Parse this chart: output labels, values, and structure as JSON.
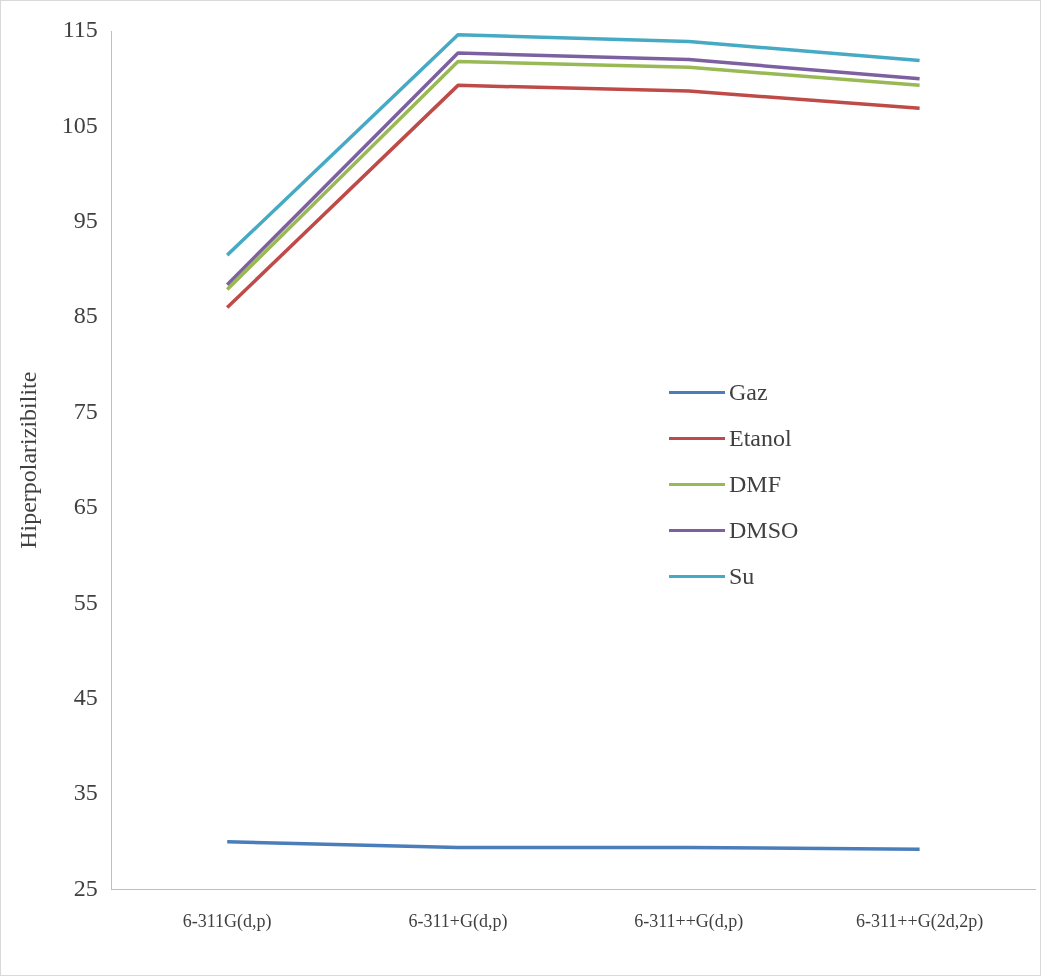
{
  "chart_data": {
    "type": "line",
    "ylabel": "Hiperpolarizibilite",
    "categories": [
      "6-311G(d,p)",
      "6-311+G(d,p)",
      "6-311++G(d,p)",
      "6-311++G(2d,2p)"
    ],
    "series": [
      {
        "name": "Gaz",
        "color": "#4a7ebb",
        "values": [
          30.0,
          29.4,
          29.4,
          29.2
        ]
      },
      {
        "name": "Etanol",
        "color": "#be4b48",
        "values": [
          86.0,
          109.3,
          108.7,
          106.9
        ]
      },
      {
        "name": "DMF",
        "color": "#98b954",
        "values": [
          87.9,
          111.8,
          111.2,
          109.3
        ]
      },
      {
        "name": "DMSO",
        "color": "#7d60a0",
        "values": [
          88.4,
          112.7,
          112.0,
          110.0
        ]
      },
      {
        "name": "Su",
        "color": "#46aac5",
        "values": [
          91.5,
          114.6,
          113.9,
          111.9
        ]
      }
    ],
    "ylim": [
      25,
      115
    ],
    "yticks": [
      25,
      35,
      45,
      55,
      65,
      75,
      85,
      95,
      105,
      115
    ],
    "grid": false,
    "legend": "right",
    "marker": "none",
    "line_style": "solid"
  }
}
